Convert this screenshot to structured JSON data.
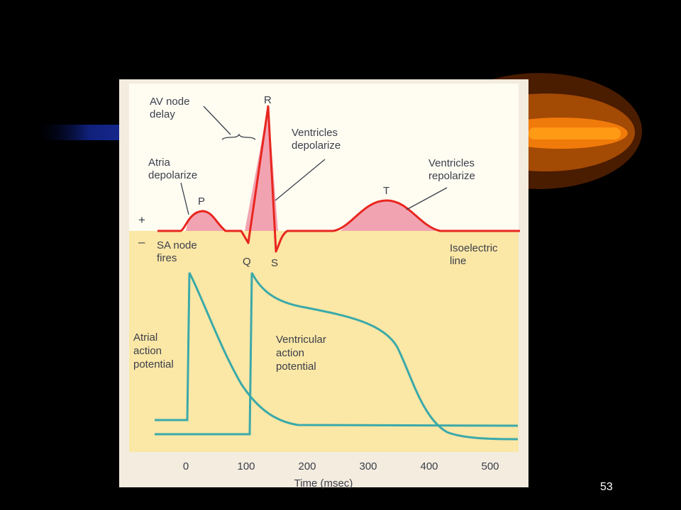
{
  "slide": {
    "number": "53"
  },
  "colors": {
    "ecg": "#e8261f",
    "ecg_fill": "#f2a3b2",
    "action_potential": "#3aa9a9",
    "lower_bg": "#fbe7a6",
    "upper_bg": "#fffdf2",
    "accent": "#ff8a0a"
  },
  "labels": {
    "av_node_delay": [
      "AV node",
      "delay"
    ],
    "atria_depolarize": [
      "Atria",
      "depolarize"
    ],
    "ventricles_depolarize": [
      "Ventricles",
      "depolarize"
    ],
    "ventricles_repolarize": [
      "Ventricles",
      "repolarize"
    ],
    "sa_node_fires": [
      "SA node",
      "fires"
    ],
    "isoelectric_line": [
      "Isoelectric",
      "line"
    ],
    "atrial_action_potential": [
      "Atrial",
      "action",
      "potential"
    ],
    "ventricular_action_potential": [
      "Ventricular",
      "action",
      "potential"
    ],
    "plus": "+",
    "minus": "–",
    "wave_P": "P",
    "wave_Q": "Q",
    "wave_R": "R",
    "wave_S": "S",
    "wave_T": "T"
  },
  "x_axis": {
    "label": "Time (msec)",
    "ticks": [
      "0",
      "100",
      "200",
      "300",
      "400",
      "500"
    ]
  }
}
